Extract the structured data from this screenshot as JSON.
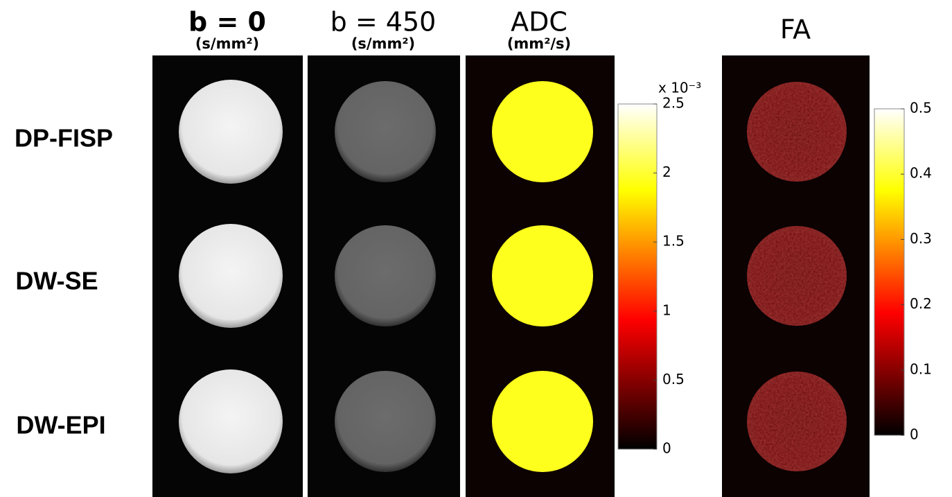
{
  "columns": [
    {
      "title": "b = 0",
      "unit": "(s/mm²)"
    },
    {
      "title": "b = 450",
      "unit": "(s/mm²)"
    },
    {
      "title": "ADC",
      "unit": "(mm²/s)"
    },
    {
      "title": "FA"
    }
  ],
  "rows": [
    "DP-FISP",
    "DW-SE",
    "DW-EPI"
  ],
  "colorbars": [
    {
      "multiplier": "x 10⁻³",
      "lim": [
        0,
        2.5
      ],
      "ticks": [
        0,
        0.5,
        1,
        1.5,
        2,
        2.5
      ]
    },
    {
      "lim": [
        0,
        0.5
      ],
      "ticks": [
        0,
        0.1,
        0.2,
        0.3,
        0.4,
        0.5
      ]
    }
  ]
}
